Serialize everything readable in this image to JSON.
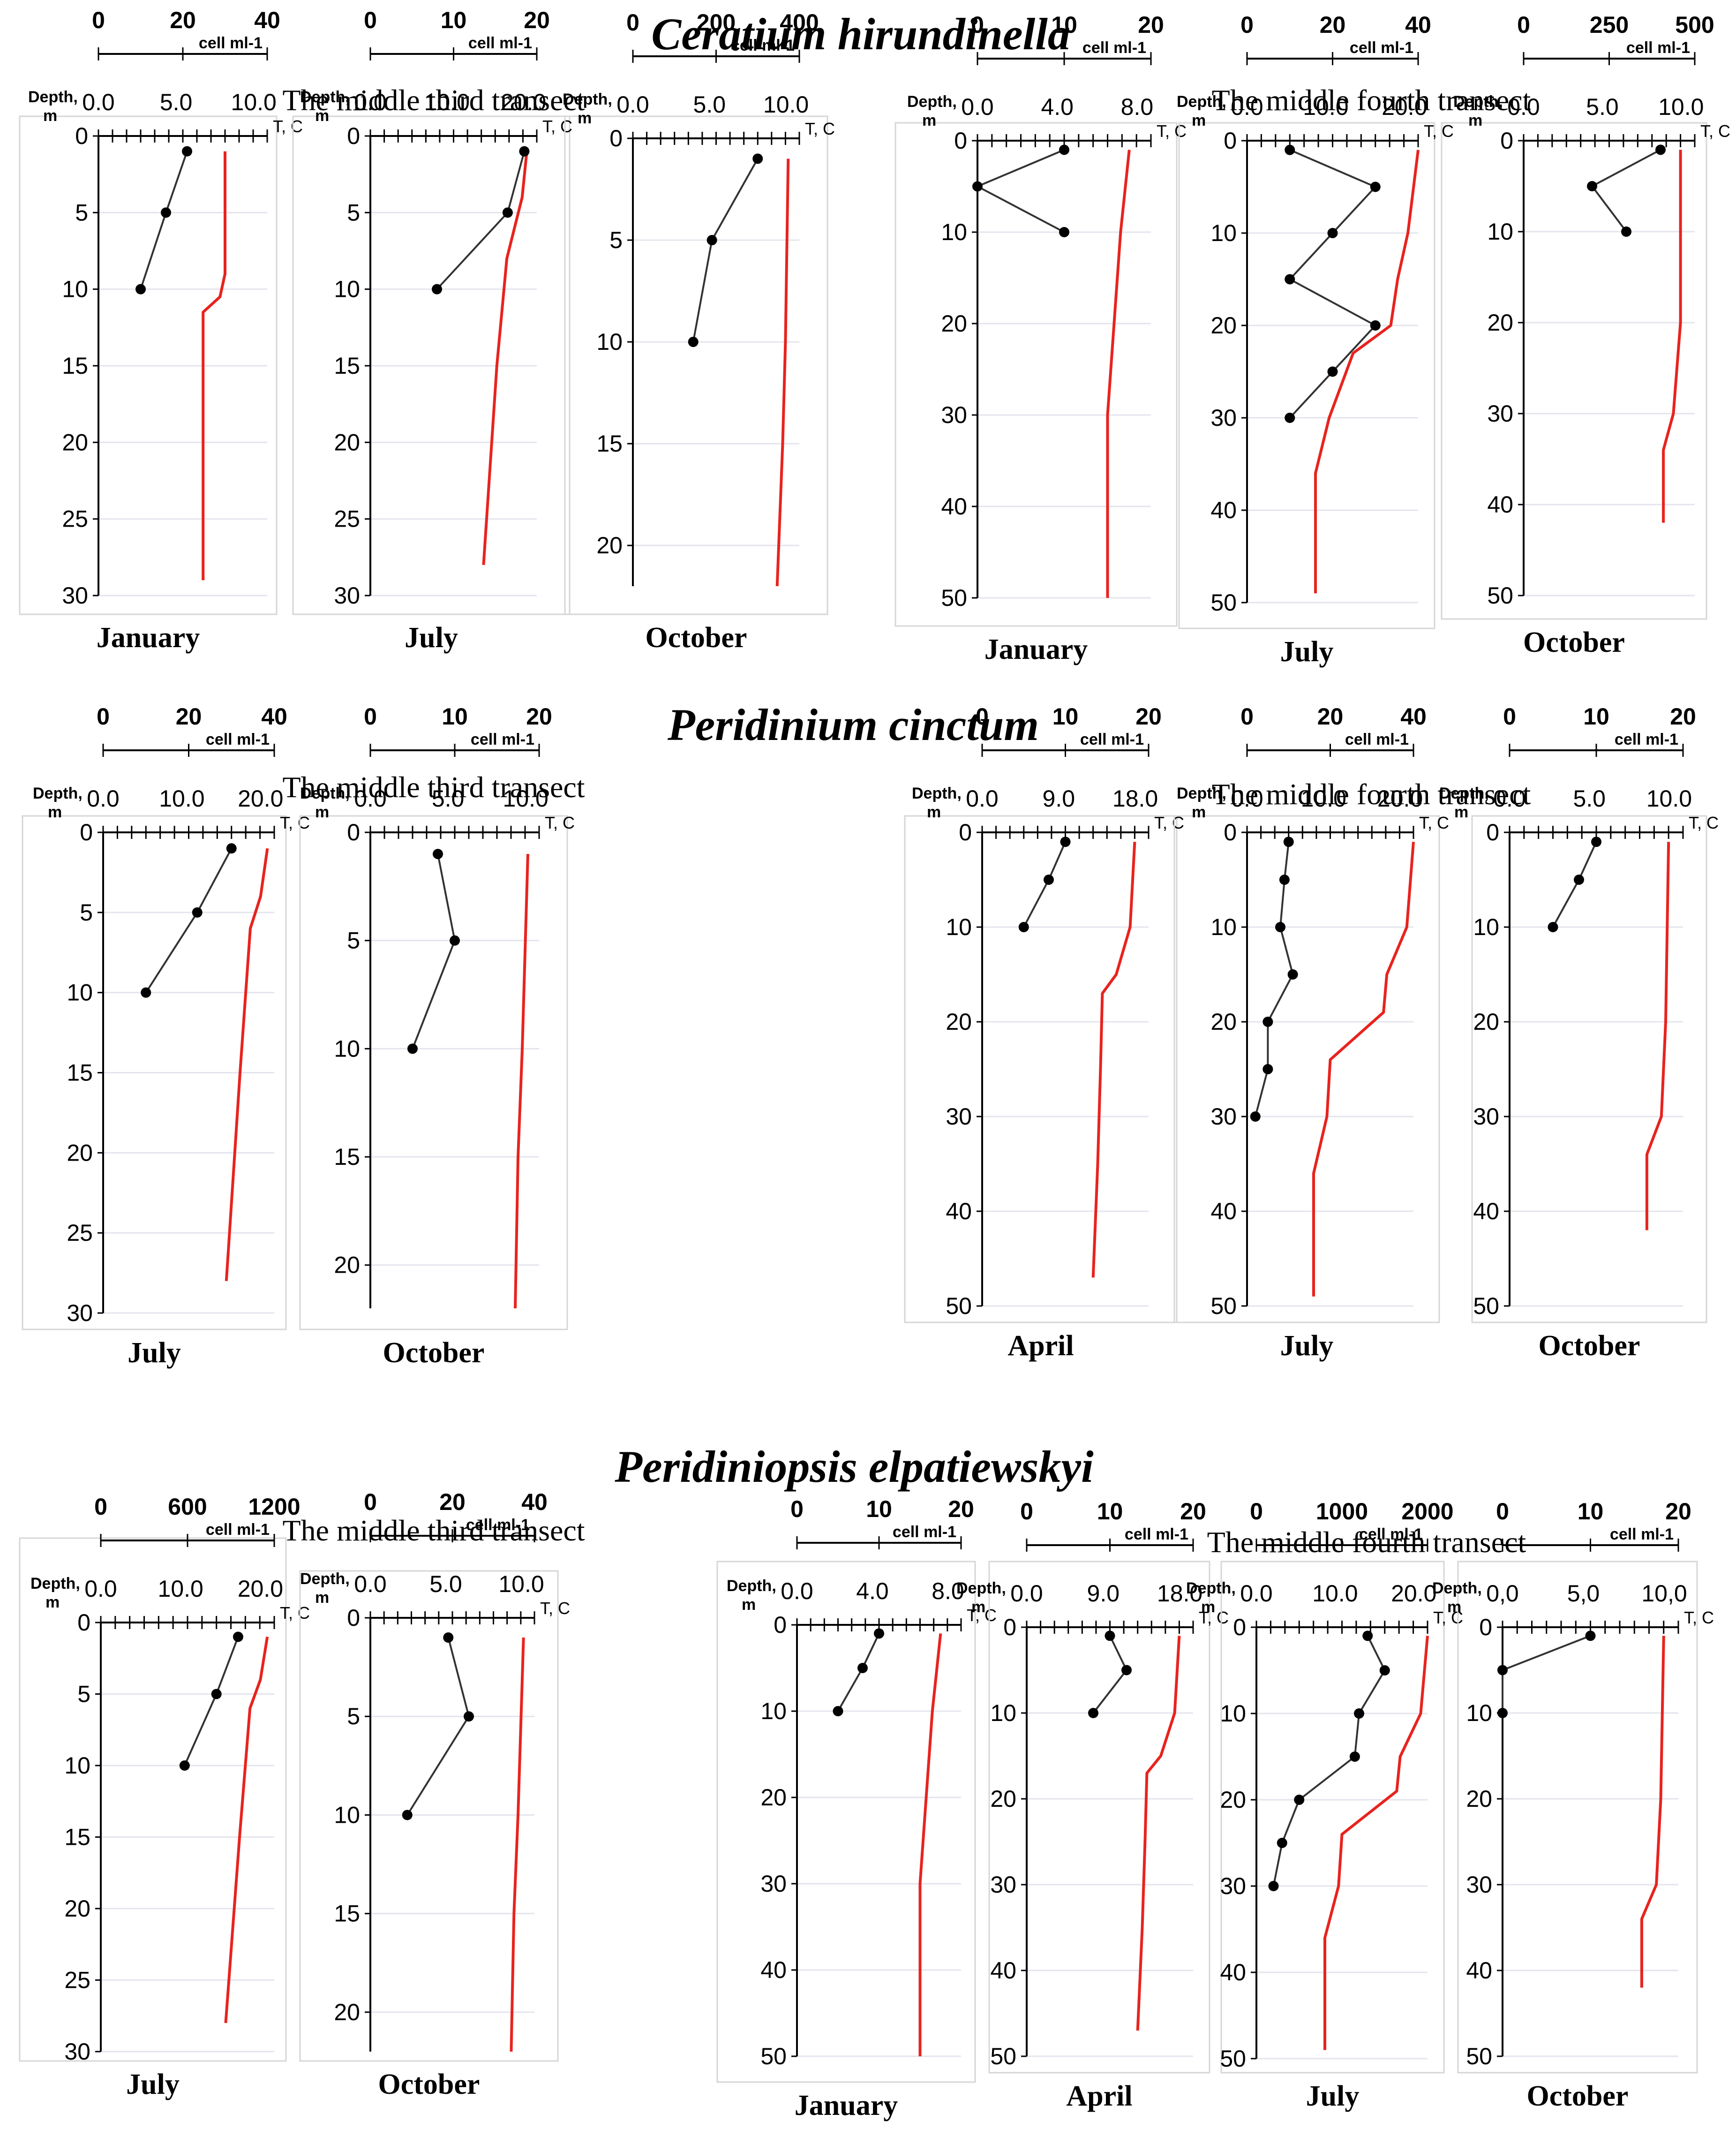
{
  "axis_labels": {
    "cell": "cell ml-1",
    "depth_line1": "Depth,",
    "depth_line2": "m",
    "temperature": "T, C"
  },
  "chart_data": [
    {
      "type": "line",
      "title": "Ceratium hirundinella",
      "subtitle": "The middle third transect",
      "xlabel": "January",
      "cell_ticks": [
        "0",
        "20",
        "40"
      ],
      "cell_range": [
        0,
        40
      ],
      "temp_ticks": [
        "0.0",
        "5.0",
        "10.0"
      ],
      "temp_range": [
        0,
        10
      ],
      "depth_ticks": [
        "0",
        "5",
        "10",
        "15",
        "20",
        "25",
        "30"
      ],
      "depth_range": [
        0,
        30
      ],
      "cells": [
        [
          21,
          1
        ],
        [
          16,
          5
        ],
        [
          10,
          10
        ]
      ],
      "temperature": [
        [
          7.5,
          1
        ],
        [
          7.5,
          9
        ],
        [
          7.2,
          10.5
        ],
        [
          6.2,
          11.5
        ],
        [
          6.2,
          29
        ]
      ]
    },
    {
      "type": "line",
      "title": "Ceratium hirundinella",
      "subtitle": "The middle third transect",
      "xlabel": "July",
      "cell_ticks": [
        "0",
        "10",
        "20"
      ],
      "cell_range": [
        0,
        20
      ],
      "temp_ticks": [
        "0.0",
        "10.0",
        "20.0"
      ],
      "temp_range": [
        0,
        25
      ],
      "depth_ticks": [
        "0",
        "5",
        "10",
        "15",
        "20",
        "25",
        "30"
      ],
      "depth_range": [
        0,
        30
      ],
      "cells": [
        [
          18.5,
          1
        ],
        [
          16.5,
          5
        ],
        [
          8,
          10
        ]
      ],
      "temperature": [
        [
          23.5,
          1
        ],
        [
          22.8,
          4
        ],
        [
          20.5,
          8
        ],
        [
          19,
          15
        ],
        [
          17,
          28
        ]
      ]
    },
    {
      "type": "line",
      "title": "Ceratium hirundinella",
      "subtitle": "The middle third transect",
      "xlabel": "October",
      "cell_ticks": [
        "0",
        "200",
        "400"
      ],
      "cell_range": [
        0,
        400
      ],
      "temp_ticks": [
        "0.0",
        "5.0",
        "10.0"
      ],
      "temp_range": [
        0,
        12
      ],
      "depth_ticks": [
        "0",
        "5",
        "10",
        "15",
        "20"
      ],
      "depth_range": [
        0,
        22
      ],
      "cells": [
        [
          300,
          1
        ],
        [
          190,
          5
        ],
        [
          145,
          10
        ]
      ],
      "temperature": [
        [
          11.2,
          1
        ],
        [
          11,
          10
        ],
        [
          10.8,
          15
        ],
        [
          10.4,
          22
        ]
      ]
    },
    {
      "type": "line",
      "title": "Ceratium hirundinella",
      "subtitle": "The middle fourth transect",
      "xlabel": "January",
      "cell_ticks": [
        "0",
        "10",
        "20"
      ],
      "cell_range": [
        0,
        20
      ],
      "temp_ticks": [
        "0.0",
        "4.0",
        "8.0"
      ],
      "temp_range": [
        0,
        8
      ],
      "depth_ticks": [
        "0",
        "10",
        "20",
        "30",
        "40",
        "50"
      ],
      "depth_range": [
        0,
        50
      ],
      "cells": [
        [
          10,
          1
        ],
        [
          0,
          5
        ],
        [
          10,
          10
        ]
      ],
      "temperature": [
        [
          7,
          1
        ],
        [
          6.6,
          10
        ],
        [
          6.3,
          20
        ],
        [
          6,
          30
        ],
        [
          6,
          50
        ]
      ]
    },
    {
      "type": "line",
      "title": "Ceratium hirundinella",
      "subtitle": "The middle fourth transect",
      "xlabel": "July",
      "cell_ticks": [
        "0",
        "20",
        "40"
      ],
      "cell_range": [
        0,
        40
      ],
      "temp_ticks": [
        "0.0",
        "10.0",
        "20.0"
      ],
      "temp_range": [
        0,
        25
      ],
      "depth_ticks": [
        "0",
        "10",
        "20",
        "30",
        "40",
        "50"
      ],
      "depth_range": [
        0,
        50
      ],
      "cells": [
        [
          10,
          1
        ],
        [
          30,
          5
        ],
        [
          20,
          10
        ],
        [
          10,
          15
        ],
        [
          30,
          20
        ],
        [
          20,
          25
        ],
        [
          10,
          30
        ]
      ],
      "temperature": [
        [
          25,
          1
        ],
        [
          23.5,
          10
        ],
        [
          22,
          15
        ],
        [
          21,
          20
        ],
        [
          15.5,
          23
        ],
        [
          12,
          30
        ],
        [
          10,
          36
        ],
        [
          10,
          49
        ]
      ]
    },
    {
      "type": "line",
      "title": "Ceratium hirundinella",
      "subtitle": "The middle fourth transect",
      "xlabel": "October",
      "cell_ticks": [
        "0",
        "250",
        "500"
      ],
      "cell_range": [
        0,
        500
      ],
      "temp_ticks": [
        "0.0",
        "5.0",
        "10.0"
      ],
      "temp_range": [
        0,
        12
      ],
      "depth_ticks": [
        "0",
        "10",
        "20",
        "30",
        "40",
        "50"
      ],
      "depth_range": [
        0,
        50
      ],
      "cells": [
        [
          400,
          1
        ],
        [
          200,
          5
        ],
        [
          300,
          10
        ]
      ],
      "temperature": [
        [
          11,
          1
        ],
        [
          11,
          20
        ],
        [
          10.5,
          30
        ],
        [
          9.8,
          34
        ],
        [
          9.8,
          42
        ]
      ]
    },
    {
      "type": "line",
      "title": "Peridinium cinctum",
      "subtitle": "The middle third transect",
      "xlabel": "July",
      "cell_ticks": [
        "0",
        "20",
        "40"
      ],
      "cell_range": [
        0,
        40
      ],
      "temp_ticks": [
        "0.0",
        "10.0",
        "20.0"
      ],
      "temp_range": [
        0,
        25
      ],
      "depth_ticks": [
        "0",
        "5",
        "10",
        "15",
        "20",
        "25",
        "30"
      ],
      "depth_range": [
        0,
        30
      ],
      "cells": [
        [
          30,
          1
        ],
        [
          22,
          5
        ],
        [
          10,
          10
        ]
      ],
      "temperature": [
        [
          24,
          1
        ],
        [
          23,
          4
        ],
        [
          21.5,
          6
        ],
        [
          20,
          15
        ],
        [
          18,
          28
        ]
      ]
    },
    {
      "type": "line",
      "title": "Peridinium cinctum",
      "subtitle": "The middle third transect",
      "xlabel": "October",
      "cell_ticks": [
        "0",
        "10",
        "20"
      ],
      "cell_range": [
        0,
        20
      ],
      "temp_ticks": [
        "0.0",
        "5.0",
        "10.0"
      ],
      "temp_range": [
        0,
        12
      ],
      "depth_ticks": [
        "0",
        "5",
        "10",
        "15",
        "20"
      ],
      "depth_range": [
        0,
        22
      ],
      "cells": [
        [
          8,
          1
        ],
        [
          10,
          5
        ],
        [
          5,
          10
        ]
      ],
      "temperature": [
        [
          11.2,
          1
        ],
        [
          10.8,
          10
        ],
        [
          10.5,
          15
        ],
        [
          10.3,
          22
        ]
      ]
    },
    {
      "type": "line",
      "title": "Peridinium cinctum",
      "subtitle": "The middle fourth transect",
      "xlabel": "April",
      "cell_ticks": [
        "0",
        "10",
        "20"
      ],
      "cell_range": [
        0,
        20
      ],
      "temp_ticks": [
        "0.0",
        "9.0",
        "18.0"
      ],
      "temp_range": [
        0,
        18
      ],
      "depth_ticks": [
        "0",
        "10",
        "20",
        "30",
        "40",
        "50"
      ],
      "depth_range": [
        0,
        50
      ],
      "cells": [
        [
          10,
          1
        ],
        [
          8,
          5
        ],
        [
          5,
          10
        ]
      ],
      "temperature": [
        [
          16.5,
          1
        ],
        [
          16,
          10
        ],
        [
          14.5,
          15
        ],
        [
          13,
          17
        ],
        [
          12.8,
          25
        ],
        [
          12.5,
          35
        ],
        [
          12,
          47
        ]
      ]
    },
    {
      "type": "line",
      "title": "Peridinium cinctum",
      "subtitle": "The middle fourth transect",
      "xlabel": "July",
      "cell_ticks": [
        "0",
        "20",
        "40"
      ],
      "cell_range": [
        0,
        40
      ],
      "temp_ticks": [
        "0.0",
        "10.0",
        "20.0"
      ],
      "temp_range": [
        0,
        25
      ],
      "depth_ticks": [
        "0",
        "10",
        "20",
        "30",
        "40",
        "50"
      ],
      "depth_range": [
        0,
        50
      ],
      "cells": [
        [
          10,
          1
        ],
        [
          9,
          5
        ],
        [
          8,
          10
        ],
        [
          11,
          15
        ],
        [
          5,
          20
        ],
        [
          5,
          25
        ],
        [
          2,
          30
        ]
      ],
      "temperature": [
        [
          25,
          1
        ],
        [
          24,
          10
        ],
        [
          21,
          15
        ],
        [
          20.5,
          19
        ],
        [
          12.5,
          24
        ],
        [
          12,
          30
        ],
        [
          10,
          36
        ],
        [
          10,
          49
        ]
      ]
    },
    {
      "type": "line",
      "title": "Peridinium cinctum",
      "subtitle": "The middle fourth transect",
      "xlabel": "October",
      "cell_ticks": [
        "0",
        "10",
        "20"
      ],
      "cell_range": [
        0,
        20
      ],
      "temp_ticks": [
        "0.0",
        "5.0",
        "10.0"
      ],
      "temp_range": [
        0,
        12
      ],
      "depth_ticks": [
        "0",
        "10",
        "20",
        "30",
        "40",
        "50"
      ],
      "depth_range": [
        0,
        50
      ],
      "cells": [
        [
          10,
          1
        ],
        [
          8,
          5
        ],
        [
          5,
          10
        ]
      ],
      "temperature": [
        [
          11,
          1
        ],
        [
          10.8,
          20
        ],
        [
          10.5,
          30
        ],
        [
          9.5,
          34
        ],
        [
          9.5,
          42
        ]
      ]
    },
    {
      "type": "line",
      "title": "Peridiniopsis elpatiewskyi",
      "subtitle": "The middle third transect",
      "xlabel": "July",
      "cell_ticks": [
        "0",
        "600",
        "1200"
      ],
      "cell_range": [
        0,
        1200
      ],
      "temp_ticks": [
        "0.0",
        "10.0",
        "20.0"
      ],
      "temp_range": [
        0,
        25
      ],
      "depth_ticks": [
        "0",
        "5",
        "10",
        "15",
        "20",
        "25",
        "30"
      ],
      "depth_range": [
        0,
        30
      ],
      "cells": [
        [
          950,
          1
        ],
        [
          800,
          5
        ],
        [
          580,
          10
        ]
      ],
      "temperature": [
        [
          24,
          1
        ],
        [
          23,
          4
        ],
        [
          21.5,
          6
        ],
        [
          20,
          15
        ],
        [
          18,
          28
        ]
      ]
    },
    {
      "type": "line",
      "title": "Peridiniopsis elpatiewskyi",
      "subtitle": "The middle third transect",
      "xlabel": "October",
      "cell_ticks": [
        "0",
        "20",
        "40"
      ],
      "cell_range": [
        0,
        40
      ],
      "temp_ticks": [
        "0.0",
        "5.0",
        "10.0"
      ],
      "temp_range": [
        0,
        12
      ],
      "depth_ticks": [
        "0",
        "5",
        "10",
        "15",
        "20"
      ],
      "depth_range": [
        0,
        22
      ],
      "cells": [
        [
          19,
          1
        ],
        [
          24,
          5
        ],
        [
          9,
          10
        ]
      ],
      "temperature": [
        [
          11.2,
          1
        ],
        [
          10.8,
          10
        ],
        [
          10.5,
          15
        ],
        [
          10.3,
          22
        ]
      ]
    },
    {
      "type": "line",
      "title": "Peridiniopsis elpatiewskyi",
      "subtitle": "The middle fourth transect",
      "xlabel": "January",
      "cell_ticks": [
        "0",
        "10",
        "20"
      ],
      "cell_range": [
        0,
        20
      ],
      "temp_ticks": [
        "0.0",
        "4.0",
        "8.0"
      ],
      "temp_range": [
        0,
        8
      ],
      "depth_ticks": [
        "0",
        "10",
        "20",
        "30",
        "40",
        "50"
      ],
      "depth_range": [
        0,
        50
      ],
      "cells": [
        [
          10,
          1
        ],
        [
          8,
          5
        ],
        [
          5,
          10
        ]
      ],
      "temperature": [
        [
          7,
          1
        ],
        [
          6.6,
          10
        ],
        [
          6.3,
          20
        ],
        [
          6,
          30
        ],
        [
          6,
          50
        ]
      ]
    },
    {
      "type": "line",
      "title": "Peridiniopsis elpatiewskyi",
      "subtitle": "The middle fourth transect",
      "xlabel": "April",
      "cell_ticks": [
        "0",
        "10",
        "20"
      ],
      "cell_range": [
        0,
        20
      ],
      "temp_ticks": [
        "0.0",
        "9.0",
        "18.0"
      ],
      "temp_range": [
        0,
        18
      ],
      "depth_ticks": [
        "0",
        "10",
        "20",
        "30",
        "40",
        "50"
      ],
      "depth_range": [
        0,
        50
      ],
      "cells": [
        [
          10,
          1
        ],
        [
          12,
          5
        ],
        [
          8,
          10
        ]
      ],
      "temperature": [
        [
          16.5,
          1
        ],
        [
          16,
          10
        ],
        [
          14.5,
          15
        ],
        [
          13,
          17
        ],
        [
          12.8,
          25
        ],
        [
          12.5,
          35
        ],
        [
          12,
          47
        ]
      ]
    },
    {
      "type": "line",
      "title": "Peridiniopsis elpatiewskyi",
      "subtitle": "The middle fourth transect",
      "xlabel": "July",
      "cell_ticks": [
        "0",
        "1000",
        "2000"
      ],
      "cell_range": [
        0,
        2000
      ],
      "temp_ticks": [
        "0.0",
        "10.0",
        "20.0"
      ],
      "temp_range": [
        0,
        25
      ],
      "depth_ticks": [
        "0",
        "10",
        "20",
        "30",
        "40",
        "50"
      ],
      "depth_range": [
        0,
        50
      ],
      "cells": [
        [
          1300,
          1
        ],
        [
          1500,
          5
        ],
        [
          1200,
          10
        ],
        [
          1150,
          15
        ],
        [
          500,
          20
        ],
        [
          300,
          25
        ],
        [
          200,
          30
        ]
      ],
      "temperature": [
        [
          25,
          1
        ],
        [
          24,
          10
        ],
        [
          21,
          15
        ],
        [
          20.5,
          19
        ],
        [
          12.5,
          24
        ],
        [
          12,
          30
        ],
        [
          10,
          36
        ],
        [
          10,
          49
        ]
      ]
    },
    {
      "type": "line",
      "title": "Peridiniopsis elpatiewskyi",
      "subtitle": "The middle fourth transect",
      "xlabel": "October",
      "cell_ticks": [
        "0",
        "10",
        "20"
      ],
      "cell_range": [
        0,
        20
      ],
      "temp_ticks": [
        "0,0",
        "5,0",
        "10,0"
      ],
      "temp_range": [
        0,
        12
      ],
      "depth_ticks": [
        "0",
        "10",
        "20",
        "30",
        "40",
        "50"
      ],
      "depth_range": [
        0,
        50
      ],
      "cells": [
        [
          10,
          1
        ],
        [
          0,
          5
        ],
        [
          0,
          10
        ]
      ],
      "temperature": [
        [
          11,
          1
        ],
        [
          10.8,
          20
        ],
        [
          10.5,
          30
        ],
        [
          9.5,
          34
        ],
        [
          9.5,
          42
        ]
      ]
    }
  ]
}
